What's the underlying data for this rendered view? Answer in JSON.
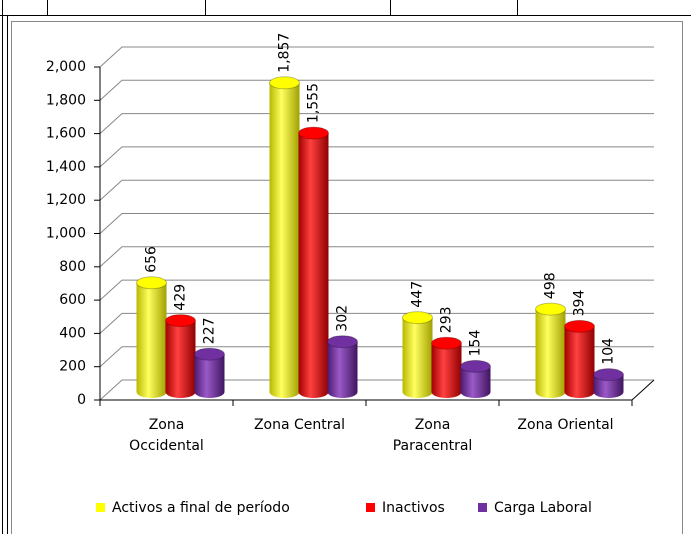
{
  "chart_data": {
    "type": "bar3d",
    "categories": [
      "Zona Occidental",
      "Zona Central",
      "Zona Paracentral",
      "Zona Oriental"
    ],
    "series": [
      {
        "name": "Activos a final de período",
        "color": "#ffff00",
        "values": [
          656,
          1857,
          447,
          498
        ],
        "value_labels": [
          "656",
          "1,857",
          "447",
          "498"
        ]
      },
      {
        "name": "Inactivos",
        "color": "#ff0000",
        "values": [
          429,
          1555,
          293,
          394
        ],
        "value_labels": [
          "429",
          "1,555",
          "293",
          "394"
        ]
      },
      {
        "name": "Carga Laboral",
        "color": "#7030a0",
        "values": [
          227,
          302,
          154,
          104
        ],
        "value_labels": [
          "227",
          "302",
          "154",
          "104"
        ]
      }
    ],
    "ylim": [
      0,
      2000
    ],
    "yticks": [
      0,
      200,
      400,
      600,
      800,
      {
        "value": 1000,
        "label": "1,000"
      },
      {
        "value": 1200,
        "label": "1,200"
      },
      {
        "value": 1400,
        "label": "1,400"
      },
      {
        "value": 1600,
        "label": "1,600"
      },
      {
        "value": 1800,
        "label": "1,800"
      },
      {
        "value": 2000,
        "label": "2,000"
      }
    ],
    "grid": true,
    "legend": "bottom"
  }
}
